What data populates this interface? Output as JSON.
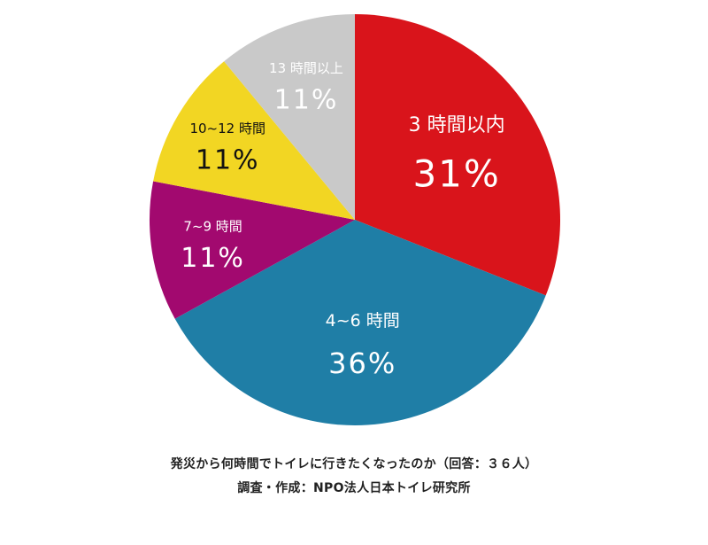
{
  "chart_data": {
    "type": "pie",
    "slices": [
      {
        "label": "3 時間以内",
        "value": 31,
        "display": "31%",
        "color": "#d9141b",
        "text_color": "#ffffff"
      },
      {
        "label": "4~6 時間",
        "value": 36,
        "display": "36%",
        "color": "#1f7ea6",
        "text_color": "#ffffff"
      },
      {
        "label": "7~9 時間",
        "value": 11,
        "display": "11%",
        "color": "#a2096f",
        "text_color": "#ffffff"
      },
      {
        "label": "10~12 時間",
        "value": 11,
        "display": "11%",
        "color": "#f2d623",
        "text_color": "#111111"
      },
      {
        "label": "13 時間以上",
        "value": 11,
        "display": "11%",
        "color": "#c9c9c9",
        "text_color": "#ffffff"
      }
    ],
    "start": "12 o'clock",
    "direction": "clockwise",
    "legend": "none"
  },
  "captions": {
    "line1": "発災から何時間でトイレに行きたくなったのか（回答：３６人）",
    "line2": "調査・作成：NPO法人日本トイレ研究所"
  }
}
